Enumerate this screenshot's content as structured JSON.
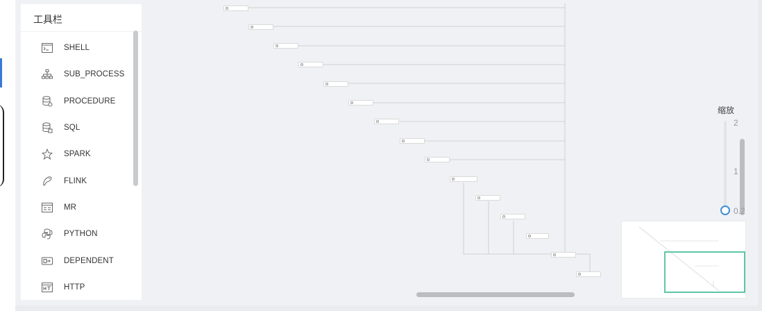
{
  "toolbar": {
    "title": "工具栏",
    "items": [
      {
        "label": "SHELL",
        "icon": "terminal-icon"
      },
      {
        "label": "SUB_PROCESS",
        "icon": "hierarchy-icon"
      },
      {
        "label": "PROCEDURE",
        "icon": "database-procedure-icon"
      },
      {
        "label": "SQL",
        "icon": "database-icon"
      },
      {
        "label": "SPARK",
        "icon": "spark-star-icon"
      },
      {
        "label": "FLINK",
        "icon": "flink-icon"
      },
      {
        "label": "MR",
        "icon": "mapreduce-icon"
      },
      {
        "label": "PYTHON",
        "icon": "python-icon"
      },
      {
        "label": "DEPENDENT",
        "icon": "dependent-icon"
      },
      {
        "label": "HTTP",
        "icon": "http-icon"
      }
    ]
  },
  "zoom": {
    "title": "缩放",
    "ticks": [
      "2",
      "1",
      "0.2"
    ],
    "value": 0.2
  },
  "colors": {
    "accent": "#3f8fd6",
    "minimap_viewport": "#5ec6a7",
    "canvas_bg": "#f0f1f4"
  }
}
